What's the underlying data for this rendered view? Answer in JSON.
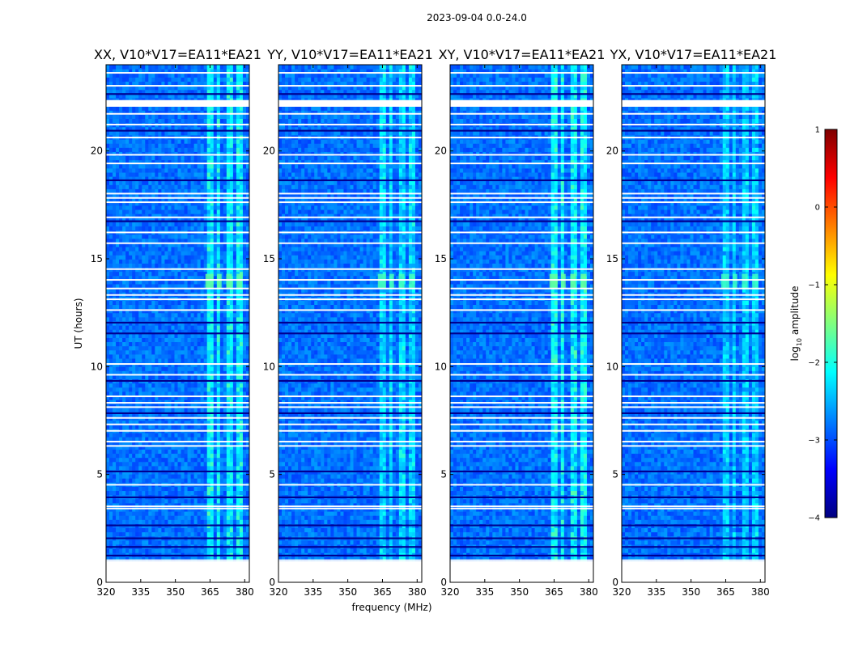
{
  "figure": {
    "suptitle": "2023-09-04 0.0-24.0"
  },
  "chart_data": {
    "type": "heatmap",
    "panels": [
      {
        "title": "XX, V10*V17=EA11*EA21",
        "strength": 1.0
      },
      {
        "title": "YY, V10*V17=EA11*EA21",
        "strength": 0.8
      },
      {
        "title": "XY, V10*V17=EA11*EA21",
        "strength": 1.05
      },
      {
        "title": "YX, V10*V17=EA11*EA21",
        "strength": 0.7
      }
    ],
    "xlabel": "frequency (MHz)",
    "ylabel": "UT (hours)",
    "xlim": [
      320,
      382
    ],
    "ylim": [
      0,
      24
    ],
    "xticks": [
      320,
      335,
      350,
      365,
      380
    ],
    "yticks": [
      0,
      5,
      10,
      15,
      20
    ],
    "data_ut_range": [
      1.0,
      24.0
    ],
    "rfi_bands_mhz": [
      [
        363,
        366.5
      ],
      [
        368,
        370
      ],
      [
        372,
        374.5
      ],
      [
        376.5,
        379
      ]
    ],
    "flagged_ut_hours": [
      1.0,
      3.4,
      3.5,
      4.5,
      6.3,
      6.5,
      7.0,
      7.3,
      7.6,
      8.1,
      8.3,
      8.6,
      9.6,
      10.1,
      12.6,
      13.1,
      13.3,
      13.6,
      14.0,
      14.5,
      15.7,
      16.2,
      16.9,
      17.6,
      17.8,
      18.0,
      19.4,
      19.8,
      20.6,
      21.2,
      21.7,
      22.1,
      22.3,
      23.0,
      23.6
    ],
    "colorbar": {
      "label": "log10 amplitude",
      "label_main": "log",
      "label_sub": "10",
      "label_tail": " amplitude",
      "range": [
        -4,
        1
      ],
      "ticks": [
        "1",
        "0",
        "−1",
        "−2",
        "−3",
        "−4"
      ],
      "tick_values": [
        1,
        0,
        -1,
        -2,
        -3,
        -4
      ],
      "colormap": "jet"
    }
  }
}
